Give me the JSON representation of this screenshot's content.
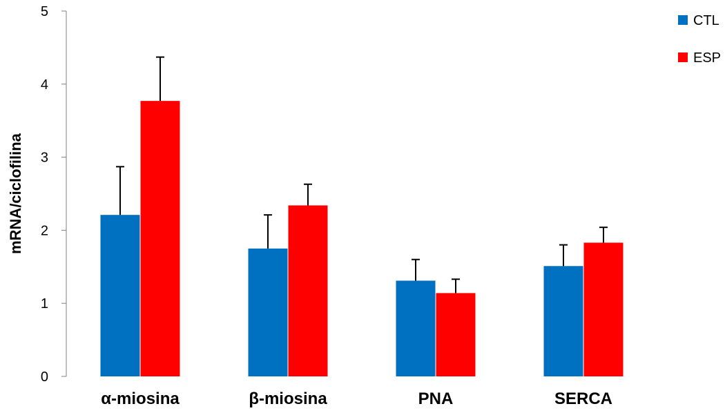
{
  "chart_data": {
    "type": "bar",
    "title": "",
    "xlabel": "",
    "ylabel": "mRNA/ciclofilina",
    "ylim": [
      0,
      5
    ],
    "yticks": [
      0,
      1,
      2,
      3,
      4,
      5
    ],
    "categories": [
      "α-miosina",
      "β-miosina",
      "PNA",
      "SERCA"
    ],
    "series": [
      {
        "name": "CTL",
        "color": "#0070C0",
        "values": [
          2.21,
          1.75,
          1.31,
          1.51
        ],
        "errors": [
          0.66,
          0.46,
          0.29,
          0.29
        ]
      },
      {
        "name": "ESP",
        "color": "#FF0000",
        "values": [
          3.77,
          2.34,
          1.14,
          1.83
        ],
        "errors": [
          0.6,
          0.29,
          0.19,
          0.21
        ]
      }
    ],
    "legend_position": "top-right",
    "grid": false
  }
}
